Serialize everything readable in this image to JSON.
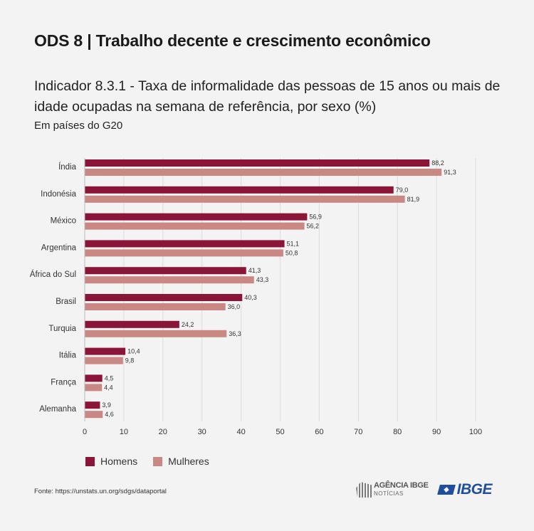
{
  "header": {
    "title": "ODS 8 | Trabalho decente e crescimento econômico",
    "subtitle": "Indicador 8.3.1 - Taxa de informalidade das pessoas de 15 anos ou mais de idade ocupadas na semana de referência, por sexo (%)",
    "scope": "Em países do G20"
  },
  "chart_data": {
    "type": "bar",
    "orientation": "horizontal",
    "categories": [
      "Índia",
      "Indonésia",
      "México",
      "Argentina",
      "África do Sul",
      "Brasil",
      "Turquia",
      "Itália",
      "França",
      "Alemanha"
    ],
    "series": [
      {
        "name": "Homens",
        "color": "#8a1538",
        "values": [
          88.2,
          79.0,
          56.9,
          51.1,
          41.3,
          40.3,
          24.2,
          10.4,
          4.5,
          3.9
        ],
        "labels": [
          "88,2",
          "79,0",
          "56,9",
          "51,1",
          "41,3",
          "40,3",
          "24,2",
          "10,4",
          "4,5",
          "3,9"
        ]
      },
      {
        "name": "Mulheres",
        "color": "#c98883",
        "values": [
          91.3,
          81.9,
          56.2,
          50.8,
          43.3,
          36.0,
          36.3,
          9.8,
          4.4,
          4.6
        ],
        "labels": [
          "91,3",
          "81,9",
          "56,2",
          "50,8",
          "43,3",
          "36,0",
          "36,3",
          "9,8",
          "4,4",
          "4,6"
        ]
      }
    ],
    "xlim": [
      0,
      100
    ],
    "xticks": [
      0,
      10,
      20,
      30,
      40,
      50,
      60,
      70,
      80,
      90,
      100
    ],
    "grid": true,
    "legend_position": "bottom-left"
  },
  "legend": {
    "homens": "Homens",
    "mulheres": "Mulheres"
  },
  "footer": {
    "source": "Fonte: https://unstats.un.org/sdgs/dataportal",
    "agencia_main": "AGÊNCIA IBGE",
    "agencia_sub": "NOTÍCIAS",
    "ibge": "IBGE"
  }
}
